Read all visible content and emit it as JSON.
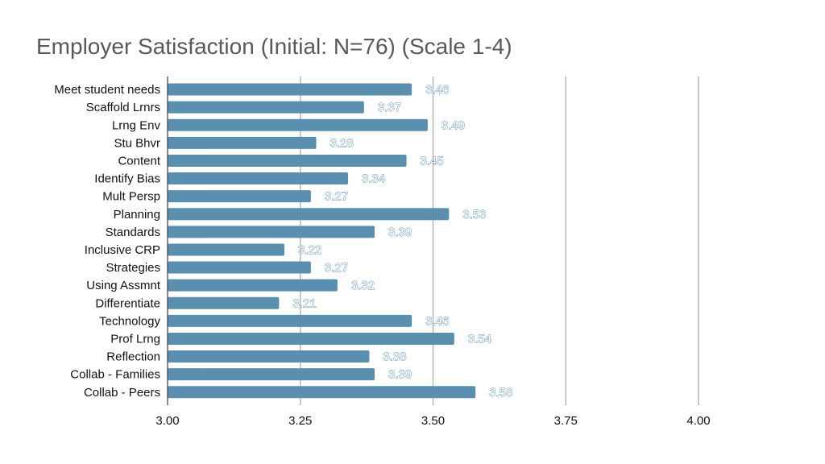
{
  "chart_data": {
    "type": "bar",
    "orientation": "horizontal",
    "title": "Employer Satisfaction (Initial: N=76) (Scale 1-4)",
    "xlabel": "",
    "ylabel": "",
    "xlim": [
      3.0,
      4.0
    ],
    "ticks": [
      "3.00",
      "3.25",
      "3.50",
      "3.75",
      "4.00"
    ],
    "tick_values": [
      3.0,
      3.25,
      3.5,
      3.75,
      4.0
    ],
    "grid": true,
    "legend": "none",
    "bar_color": "#5b8fb0",
    "categories": [
      "Meet student needs",
      "Scaffold Lrnrs",
      "Lrng Env",
      "Stu Bhvr",
      "Content",
      "Identify Bias",
      "Mult Persp",
      "Planning",
      "Standards",
      "Inclusive CRP",
      "Strategies",
      "Using Assmnt",
      "Differentiate",
      "Technology",
      "Prof Lrng",
      "Reflection",
      "Collab - Families",
      "Collab - Peers"
    ],
    "values": [
      3.46,
      3.37,
      3.49,
      3.28,
      3.45,
      3.34,
      3.27,
      3.53,
      3.39,
      3.22,
      3.27,
      3.32,
      3.21,
      3.46,
      3.54,
      3.38,
      3.39,
      3.58
    ],
    "value_labels": [
      "3.46",
      "3.37",
      "3.49",
      "3.28",
      "3.45",
      "3.34",
      "3.27",
      "3.53",
      "3.39",
      "3.22",
      "3.27",
      "3.32",
      "3.21",
      "3.46",
      "3.54",
      "3.38",
      "3.39",
      "3.58"
    ]
  }
}
